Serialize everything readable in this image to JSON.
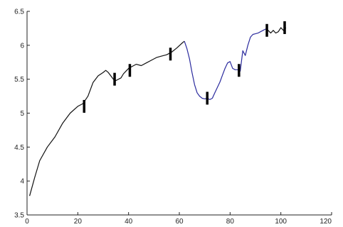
{
  "chart_data": {
    "type": "line",
    "title": "",
    "xlabel": "",
    "ylabel": "",
    "xlim": [
      0,
      120
    ],
    "ylim": [
      3.5,
      6.5
    ],
    "grid": false,
    "xticks": [
      0,
      20,
      40,
      60,
      80,
      100,
      120
    ],
    "yticks": [
      3.5,
      4,
      4.5,
      5,
      5.5,
      6,
      6.5
    ],
    "xtick_labels": [
      "0",
      "20",
      "40",
      "60",
      "80",
      "100",
      "120"
    ],
    "ytick_labels": [
      "3.5",
      "4",
      "4.5",
      "5",
      "5.5",
      "6",
      "6.5"
    ],
    "colors": {
      "line_dark": "#111111",
      "line_blue": "#2b2b9e",
      "marker": "#000000",
      "axes": "#222222"
    },
    "series": [
      {
        "x": [
          1,
          3,
          5,
          8,
          11,
          14,
          17,
          20,
          22,
          24,
          26,
          28,
          30,
          31,
          32,
          33,
          34,
          35,
          37,
          38,
          39,
          40,
          42,
          43,
          45,
          47,
          49,
          51,
          53,
          55,
          57,
          59,
          61,
          62
        ],
        "y": [
          3.78,
          4.05,
          4.3,
          4.5,
          4.65,
          4.85,
          5.0,
          5.1,
          5.14,
          5.25,
          5.45,
          5.55,
          5.6,
          5.63,
          5.6,
          5.55,
          5.5,
          5.48,
          5.52,
          5.58,
          5.62,
          5.66,
          5.7,
          5.72,
          5.7,
          5.74,
          5.78,
          5.82,
          5.84,
          5.86,
          5.9,
          5.96,
          6.03,
          6.06
        ],
        "color": "#111111"
      },
      {
        "x": [
          62,
          63,
          64,
          65,
          66,
          67,
          68,
          69,
          70,
          71,
          72,
          73,
          74,
          75,
          76,
          77,
          78,
          79,
          80,
          81,
          82,
          83,
          84,
          85,
          86,
          87,
          88,
          89,
          90,
          91,
          92,
          93,
          94
        ],
        "y": [
          6.06,
          5.95,
          5.8,
          5.6,
          5.42,
          5.3,
          5.25,
          5.22,
          5.21,
          5.22,
          5.2,
          5.22,
          5.3,
          5.38,
          5.46,
          5.56,
          5.66,
          5.74,
          5.76,
          5.66,
          5.64,
          5.64,
          5.62,
          5.92,
          5.85,
          6.0,
          6.12,
          6.16,
          6.17,
          6.18,
          6.2,
          6.22,
          6.24
        ],
        "color": "#2b2b9e"
      },
      {
        "x": [
          94,
          95,
          96,
          97,
          98,
          99,
          100,
          101,
          102
        ],
        "y": [
          6.24,
          6.22,
          6.18,
          6.22,
          6.18,
          6.2,
          6.26,
          6.22,
          6.26
        ],
        "color": "#111111"
      }
    ],
    "markers": [
      {
        "x": 22.5,
        "y": 5.1
      },
      {
        "x": 34.5,
        "y": 5.5
      },
      {
        "x": 40.5,
        "y": 5.63
      },
      {
        "x": 56.5,
        "y": 5.87
      },
      {
        "x": 71.0,
        "y": 5.22
      },
      {
        "x": 83.5,
        "y": 5.63
      },
      {
        "x": 94.5,
        "y": 6.22
      },
      {
        "x": 101.5,
        "y": 6.26
      }
    ]
  }
}
